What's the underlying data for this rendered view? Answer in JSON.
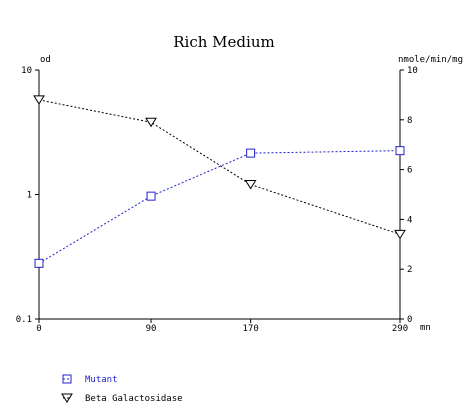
{
  "chart_data": {
    "type": "line",
    "title": "Rich Medium",
    "xlabel": "mn",
    "ylabel_left": "od",
    "ylabel_right": "nmole/min/mg",
    "x_ticks": [
      "0",
      "90",
      "170",
      "290"
    ],
    "y_left_ticks": [
      "10",
      "1",
      "0.1"
    ],
    "y_right_ticks": [
      "10",
      "8",
      "6",
      "4",
      "2",
      "0"
    ],
    "y_left_scale": "log",
    "y_left_range": [
      0.1,
      10
    ],
    "y_right_range": [
      0,
      10
    ],
    "x_range": [
      0,
      290
    ],
    "grid": false,
    "legend_position": "bottom-left",
    "series": [
      {
        "name": "Mutant",
        "axis": "left",
        "marker": "square",
        "color": "#2222cc",
        "x": [
          0,
          90,
          170,
          290
        ],
        "y": [
          0.28,
          0.97,
          2.15,
          2.25
        ]
      },
      {
        "name": "Beta Galactosidase",
        "axis": "right",
        "marker": "triangle-down",
        "color": "#000000",
        "x": [
          0,
          90,
          170,
          290
        ],
        "y": [
          8.8,
          7.9,
          5.4,
          3.4
        ]
      }
    ]
  }
}
